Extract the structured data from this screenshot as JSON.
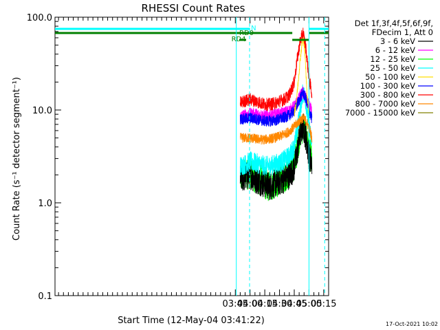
{
  "chart_data": {
    "type": "line",
    "title": "RHESSI Count Rates",
    "xlabel": "Start Time (12-May-04 03:41:22)",
    "ylabel": "Count Rate (s⁻¹ detector segment⁻¹)",
    "yscale": "log",
    "ylim": [
      0.1,
      100.0
    ],
    "xlim_minutes": [
      41.4,
      320.0
    ],
    "x_tick_labels": [
      "03:45",
      "04:00",
      "04:15",
      "04:30",
      "04:45",
      "05:00",
      "05:15"
    ],
    "x_tick_minutes": [
      225,
      240,
      255,
      270,
      285,
      300,
      315
    ],
    "y_tick_labels": [
      "0.1",
      "1.0",
      "10.0",
      "100.0"
    ],
    "y_tick_values": [
      0.1,
      1.0,
      10.0,
      100.0
    ],
    "legend_header": [
      "Det 1f,3f,4f,5f,6f,9f,",
      "FDecim 1, Att 0"
    ],
    "legend_position": "right",
    "footer_date": "17-Oct-2021 10:02",
    "series": [
      {
        "name": "3 - 6 keV",
        "color": "#000000",
        "x": [
          230,
          235,
          240,
          245,
          250,
          255,
          260,
          265,
          270,
          275,
          280,
          285,
          288,
          291,
          294,
          297,
          300,
          303
        ],
        "y": [
          1.8,
          1.9,
          2.0,
          1.8,
          1.7,
          1.6,
          1.5,
          1.6,
          1.7,
          1.8,
          2.0,
          2.4,
          3.5,
          5.5,
          6.8,
          5.0,
          3.2,
          2.5
        ]
      },
      {
        "name": "6 - 12 keV",
        "color": "#ff00ff",
        "x": [
          230,
          235,
          240,
          245,
          250,
          255,
          260,
          265,
          270,
          275,
          280,
          285,
          288,
          291,
          294,
          297,
          300,
          303
        ],
        "y": [
          8.5,
          8.8,
          9.0,
          9.0,
          8.8,
          8.6,
          8.7,
          8.8,
          9.0,
          9.3,
          9.8,
          10.8,
          12.0,
          14.0,
          15.5,
          13.0,
          11.0,
          9.5
        ]
      },
      {
        "name": "12 - 25 keV",
        "color": "#00ff00",
        "x": [
          230,
          235,
          240,
          245,
          250,
          255,
          260,
          265,
          270,
          275,
          280,
          285,
          288,
          291,
          294,
          297,
          300,
          303
        ],
        "y": [
          1.9,
          2.0,
          2.1,
          1.9,
          1.8,
          1.6,
          1.5,
          1.6,
          1.8,
          1.9,
          2.1,
          2.6,
          3.8,
          5.7,
          6.6,
          5.5,
          3.5,
          2.8
        ]
      },
      {
        "name": "25 - 50 keV",
        "color": "#00ffff",
        "x": [
          230,
          235,
          240,
          245,
          250,
          255,
          260,
          265,
          270,
          275,
          280,
          285,
          288,
          291,
          294,
          297,
          300,
          303
        ],
        "y": [
          2.5,
          2.6,
          2.8,
          2.7,
          2.6,
          2.5,
          2.5,
          2.6,
          2.7,
          2.9,
          3.2,
          4.0,
          6.0,
          10.0,
          16.0,
          12.0,
          7.0,
          4.0
        ]
      },
      {
        "name": "50 - 100 keV",
        "color": "#ffdd00",
        "x": [
          285,
          287,
          289,
          291,
          293,
          294,
          295,
          296,
          297,
          298,
          300
        ],
        "y": [
          9.0,
          12.0,
          20.0,
          35.0,
          52.0,
          58.0,
          52.0,
          38.0,
          24.0,
          15.0,
          9.0
        ]
      },
      {
        "name": "100 - 300 keV",
        "color": "#0000ff",
        "x": [
          230,
          235,
          240,
          245,
          250,
          255,
          260,
          265,
          270,
          275,
          280,
          285,
          288,
          291,
          294,
          297,
          300,
          303
        ],
        "y": [
          8.0,
          8.0,
          8.2,
          8.0,
          7.8,
          7.6,
          7.6,
          7.7,
          8.0,
          8.3,
          8.8,
          9.8,
          11.5,
          13.5,
          15.5,
          13.0,
          10.0,
          8.0
        ]
      },
      {
        "name": "300 - 800 keV",
        "color": "#ff0000",
        "x": [
          230,
          235,
          240,
          245,
          250,
          255,
          260,
          265,
          270,
          275,
          280,
          285,
          288,
          291,
          294,
          297,
          300,
          303
        ],
        "y": [
          12.0,
          12.5,
          13.0,
          12.5,
          12.0,
          11.5,
          11.5,
          11.8,
          12.5,
          13.0,
          14.5,
          20.0,
          35.0,
          55.0,
          68.0,
          45.0,
          22.0,
          15.0
        ]
      },
      {
        "name": "800 - 7000 keV",
        "color": "#ff8800",
        "x": [
          230,
          235,
          240,
          245,
          250,
          255,
          260,
          265,
          270,
          275,
          280,
          285,
          288,
          291,
          294,
          297,
          300,
          303
        ],
        "y": [
          5.0,
          5.0,
          5.0,
          4.9,
          4.8,
          4.8,
          4.9,
          5.0,
          5.2,
          5.5,
          5.9,
          6.6,
          7.2,
          7.8,
          8.2,
          7.6,
          6.5,
          5.0
        ]
      },
      {
        "name": "7000 - 15000 keV",
        "color": "#808000",
        "x": [],
        "y": []
      }
    ],
    "bars": [
      {
        "name": "N",
        "color": "#00ffff",
        "segments": [
          [
            41.4,
            240.0
          ],
          [
            300.0,
            320.0
          ]
        ]
      },
      {
        "name": "RD0",
        "color": "#008000",
        "segments": [
          [
            41.4,
            283.0
          ],
          [
            300.0,
            320.0
          ]
        ]
      },
      {
        "name": "RD4",
        "color": "#008000",
        "segments": [
          [
            229.0,
            236.0
          ],
          [
            283.0,
            300.0
          ]
        ]
      }
    ],
    "vertical_lines": [
      {
        "x": 226.0,
        "style": "solid",
        "color": "#00ffff"
      },
      {
        "x": 239.5,
        "style": "dashed",
        "color": "#00ffff"
      },
      {
        "x": 300.0,
        "style": "solid",
        "color": "#00ffff"
      },
      {
        "x": 316.0,
        "style": "dashed",
        "color": "#00ffff"
      }
    ]
  }
}
